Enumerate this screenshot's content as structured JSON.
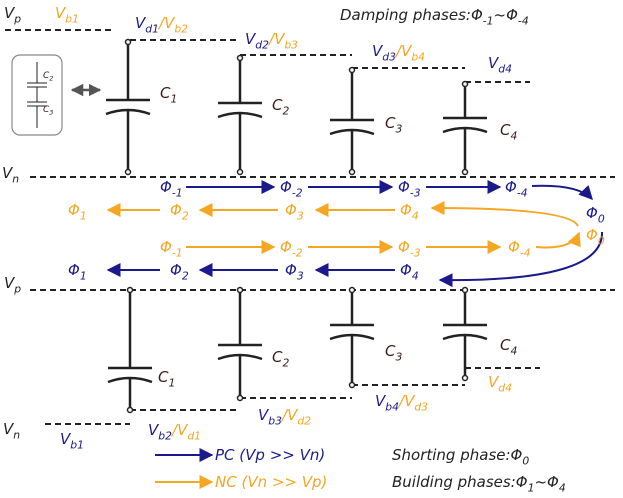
{
  "labels": [
    {
      "color": "#222",
      "parts": [
        {
          "text": "V"
        },
        {
          "text": "p",
          "sub": true
        }
      ]
    },
    {
      "color": "#f5a623",
      "parts": [
        {
          "text": "V"
        },
        {
          "text": "b1",
          "sub": true
        }
      ]
    },
    {
      "color": "#1a1a8c",
      "parts": [
        {
          "text": "V"
        },
        {
          "text": "d1",
          "sub": true
        },
        {
          "text": "/",
          "color": "#f5a623"
        },
        {
          "text": "V",
          "color": "#f5a623"
        },
        {
          "text": "b2",
          "sub": true,
          "color": "#f5a623"
        }
      ]
    },
    {
      "color": "#1a1a8c",
      "parts": [
        {
          "text": "V"
        },
        {
          "text": "d2",
          "sub": true
        },
        {
          "text": "/",
          "color": "#f5a623"
        },
        {
          "text": "V",
          "color": "#f5a623"
        },
        {
          "text": "b3",
          "sub": true,
          "color": "#f5a623"
        }
      ]
    },
    {
      "color": "#1a1a8c",
      "parts": [
        {
          "text": "V"
        },
        {
          "text": "d3",
          "sub": true
        },
        {
          "text": "/",
          "color": "#f5a623"
        },
        {
          "text": "V",
          "color": "#f5a623"
        },
        {
          "text": "b4",
          "sub": true,
          "color": "#f5a623"
        }
      ]
    },
    {
      "color": "#1a1a8c",
      "parts": [
        {
          "text": "V"
        },
        {
          "text": "d4",
          "sub": true
        }
      ]
    },
    {
      "color": "#222",
      "parts": [
        {
          "text": "V"
        },
        {
          "text": "n",
          "sub": true
        }
      ]
    },
    {
      "color": "#3a1a1a",
      "parts": [
        {
          "text": "C"
        },
        {
          "text": "1",
          "sub": true
        }
      ]
    },
    {
      "color": "#3a1a1a",
      "parts": [
        {
          "text": "C"
        },
        {
          "text": "2",
          "sub": true
        }
      ]
    },
    {
      "color": "#3a1a1a",
      "parts": [
        {
          "text": "C"
        },
        {
          "text": "3",
          "sub": true
        }
      ]
    },
    {
      "color": "#3a1a1a",
      "parts": [
        {
          "text": "C"
        },
        {
          "text": "4",
          "sub": true
        }
      ]
    },
    {
      "color": "#222",
      "parts": [
        {
          "text": "Damping phases:Φ"
        },
        {
          "text": "-1",
          "sub": true
        },
        {
          "text": "~Φ"
        },
        {
          "text": "-4",
          "sub": true
        }
      ]
    },
    {
      "color": "#3a1a1a",
      "size": 9,
      "parts": [
        {
          "text": "C"
        },
        {
          "text": "2",
          "sub": true
        }
      ]
    },
    {
      "color": "#3a1a1a",
      "size": 9,
      "parts": [
        {
          "text": "C"
        },
        {
          "text": "3",
          "sub": true
        }
      ]
    },
    {
      "color": "#1a1a8c",
      "parts": [
        {
          "text": "Φ"
        },
        {
          "text": "-1",
          "sub": true
        }
      ]
    },
    {
      "color": "#1a1a8c",
      "parts": [
        {
          "text": "Φ"
        },
        {
          "text": "-2",
          "sub": true
        }
      ]
    },
    {
      "color": "#1a1a8c",
      "parts": [
        {
          "text": "Φ"
        },
        {
          "text": "-3",
          "sub": true
        }
      ]
    },
    {
      "color": "#1a1a8c",
      "parts": [
        {
          "text": "Φ"
        },
        {
          "text": "-4",
          "sub": true
        }
      ]
    },
    {
      "color": "#1a1a8c",
      "parts": [
        {
          "text": "Φ"
        },
        {
          "text": "0",
          "sub": true
        }
      ]
    },
    {
      "color": "#f5a623",
      "parts": [
        {
          "text": "Φ"
        },
        {
          "text": "1",
          "sub": true
        }
      ]
    },
    {
      "color": "#f5a623",
      "parts": [
        {
          "text": "Φ"
        },
        {
          "text": "2",
          "sub": true
        }
      ]
    },
    {
      "color": "#f5a623",
      "parts": [
        {
          "text": "Φ"
        },
        {
          "text": "3",
          "sub": true
        }
      ]
    },
    {
      "color": "#f5a623",
      "parts": [
        {
          "text": "Φ"
        },
        {
          "text": "4",
          "sub": true
        }
      ]
    },
    {
      "color": "#f5a623",
      "parts": [
        {
          "text": "Φ"
        },
        {
          "text": "-1",
          "sub": true
        }
      ]
    },
    {
      "color": "#f5a623",
      "parts": [
        {
          "text": "Φ"
        },
        {
          "text": "-2",
          "sub": true
        }
      ]
    },
    {
      "color": "#f5a623",
      "parts": [
        {
          "text": "Φ"
        },
        {
          "text": "-3",
          "sub": true
        }
      ]
    },
    {
      "color": "#f5a623",
      "parts": [
        {
          "text": "Φ"
        },
        {
          "text": "-4",
          "sub": true
        }
      ]
    },
    {
      "color": "#f5a623",
      "parts": [
        {
          "text": "Φ"
        },
        {
          "text": "0",
          "sub": true
        }
      ]
    },
    {
      "color": "#1a1a8c",
      "parts": [
        {
          "text": "Φ"
        },
        {
          "text": "1",
          "sub": true
        }
      ]
    },
    {
      "color": "#1a1a8c",
      "parts": [
        {
          "text": "Φ"
        },
        {
          "text": "2",
          "sub": true
        }
      ]
    },
    {
      "color": "#1a1a8c",
      "parts": [
        {
          "text": "Φ"
        },
        {
          "text": "3",
          "sub": true
        }
      ]
    },
    {
      "color": "#1a1a8c",
      "parts": [
        {
          "text": "Φ"
        },
        {
          "text": "4",
          "sub": true
        }
      ]
    },
    {
      "color": "#222",
      "parts": [
        {
          "text": "V"
        },
        {
          "text": "p",
          "sub": true
        }
      ]
    },
    {
      "color": "#3a1a1a",
      "parts": [
        {
          "text": "C"
        },
        {
          "text": "1",
          "sub": true
        }
      ]
    },
    {
      "color": "#3a1a1a",
      "parts": [
        {
          "text": "C"
        },
        {
          "text": "2",
          "sub": true
        }
      ]
    },
    {
      "color": "#3a1a1a",
      "parts": [
        {
          "text": "C"
        },
        {
          "text": "3",
          "sub": true
        }
      ]
    },
    {
      "color": "#3a1a1a",
      "parts": [
        {
          "text": "C"
        },
        {
          "text": "4",
          "sub": true
        }
      ]
    },
    {
      "color": "#f5a623",
      "parts": [
        {
          "text": "V"
        },
        {
          "text": "d4",
          "sub": true
        }
      ]
    },
    {
      "color": "#1a1a8c",
      "parts": [
        {
          "text": "V"
        },
        {
          "text": "b4",
          "sub": true
        },
        {
          "text": "/",
          "color": "#f5a623"
        },
        {
          "text": "V",
          "color": "#f5a623"
        },
        {
          "text": "d3",
          "sub": true,
          "color": "#f5a623"
        }
      ]
    },
    {
      "color": "#1a1a8c",
      "parts": [
        {
          "text": "V"
        },
        {
          "text": "b3",
          "sub": true
        },
        {
          "text": "/",
          "color": "#f5a623"
        },
        {
          "text": "V",
          "color": "#f5a623"
        },
        {
          "text": "d2",
          "sub": true,
          "color": "#f5a623"
        }
      ]
    },
    {
      "color": "#1a1a8c",
      "parts": [
        {
          "text": "V"
        },
        {
          "text": "b2",
          "sub": true
        },
        {
          "text": "/",
          "color": "#f5a623"
        },
        {
          "text": "V",
          "color": "#f5a623"
        },
        {
          "text": "d1",
          "sub": true,
          "color": "#f5a623"
        }
      ]
    },
    {
      "color": "#222",
      "parts": [
        {
          "text": "V"
        },
        {
          "text": "n",
          "sub": true
        }
      ]
    },
    {
      "color": "#1a1a8c",
      "parts": [
        {
          "text": "V"
        },
        {
          "text": "b1",
          "sub": true
        }
      ]
    },
    {
      "color": "#1a1a8c",
      "parts": [
        {
          "text": "PC (Vp >> Vn)"
        }
      ]
    },
    {
      "color": "#f5a623",
      "parts": [
        {
          "text": "NC (Vn >> Vp)"
        }
      ]
    },
    {
      "color": "#222",
      "parts": [
        {
          "text": "Shorting phase:Φ"
        },
        {
          "text": "0",
          "sub": true
        }
      ]
    },
    {
      "color": "#222",
      "parts": [
        {
          "text": "Building phases:Φ"
        },
        {
          "text": "1",
          "sub": true
        },
        {
          "text": "~Φ"
        },
        {
          "text": "4",
          "sub": true
        }
      ]
    }
  ]
}
